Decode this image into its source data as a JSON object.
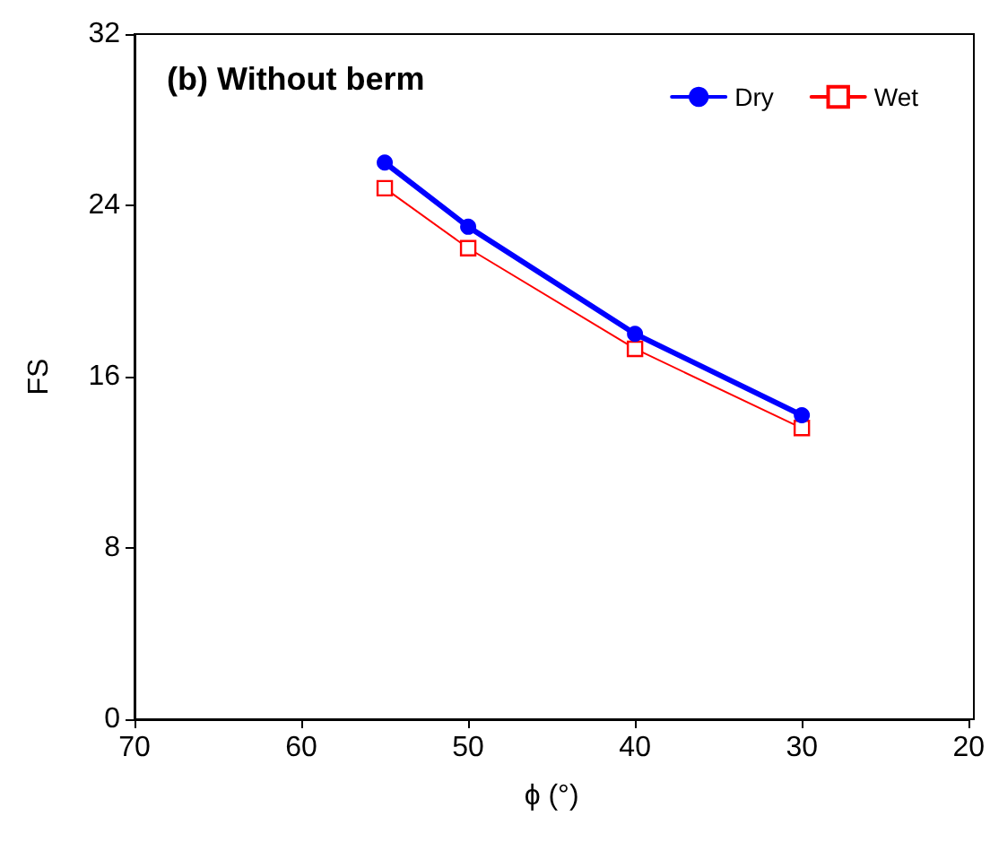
{
  "chart_data": {
    "type": "line",
    "title": "(b) Without berm",
    "xlabel": "ϕ (°)",
    "ylabel": "FS",
    "x": [
      55,
      50,
      40,
      30
    ],
    "series": [
      {
        "name": "Dry",
        "color": "#0000ff",
        "values": [
          26.0,
          23.0,
          18.0,
          14.2
        ],
        "marker": "circle"
      },
      {
        "name": "Wet",
        "color": "#ff0000",
        "values": [
          24.8,
          22.0,
          17.3,
          13.6
        ],
        "marker": "square"
      }
    ],
    "xlim": [
      70,
      20
    ],
    "xticks": [
      70,
      60,
      50,
      40,
      30,
      20
    ],
    "ylim": [
      0,
      32
    ],
    "yticks": [
      0,
      8,
      16,
      24,
      32
    ],
    "grid": false,
    "legend": "top right",
    "line_style": "solid"
  }
}
